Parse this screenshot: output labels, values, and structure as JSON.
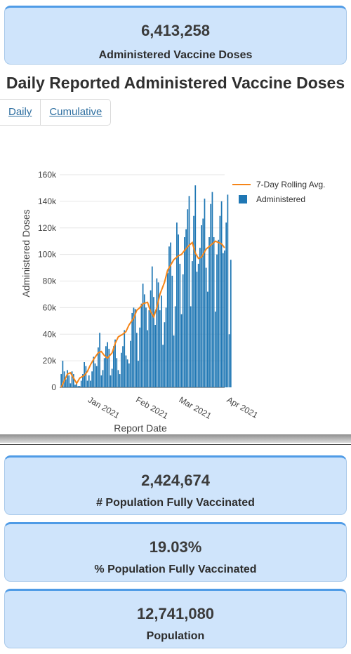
{
  "top_card": {
    "value": "6,413,258",
    "label": "Administered Vaccine Doses"
  },
  "section_title": "Daily Reported Administered Vaccine Doses",
  "tabs": [
    {
      "label": "Daily",
      "active": true
    },
    {
      "label": "Cumulative",
      "active": false
    }
  ],
  "colors": {
    "bar": "#1f77b4",
    "line": "#f58518",
    "card_bg": "#cfe4fb",
    "card_border": "#4f9be6"
  },
  "chart_data": {
    "type": "bar",
    "xlabel": "Report Date",
    "ylabel": "Administered Doses",
    "ylim": [
      0,
      160000
    ],
    "yticks": [
      0,
      20000,
      40000,
      60000,
      80000,
      100000,
      120000,
      140000,
      160000
    ],
    "ytick_labels": [
      "0",
      "20k",
      "40k",
      "60k",
      "80k",
      "100k",
      "120k",
      "140k",
      "160k"
    ],
    "xrange": [
      "2020-12-14",
      "2021-03-31"
    ],
    "xticks": [
      "2021-01-01",
      "2021-02-01",
      "2021-03-01",
      "2021-04-01"
    ],
    "xtick_labels": [
      "Jan 2021",
      "Feb 2021",
      "Mar 2021",
      "Apr 2021"
    ],
    "legend_position": "top-right",
    "grid": true,
    "series": [
      {
        "name": "Administered",
        "kind": "bar",
        "start_date": "2020-12-15",
        "values": [
          10000,
          20000,
          12000,
          6000,
          13000,
          9000,
          3000,
          12000,
          10000,
          2000,
          4000,
          1000,
          1000,
          5000,
          10000,
          19000,
          16000,
          5000,
          9000,
          5000,
          12000,
          23000,
          18000,
          16000,
          30000,
          41000,
          9000,
          13000,
          22000,
          31000,
          34000,
          29000,
          9000,
          14000,
          31000,
          36000,
          22000,
          13000,
          10000,
          26000,
          31000,
          43000,
          24000,
          21000,
          18000,
          35000,
          56000,
          60000,
          59000,
          41000,
          20000,
          45000,
          63000,
          78000,
          70000,
          60000,
          43000,
          58000,
          73000,
          91000,
          68000,
          47000,
          82000,
          79000,
          58000,
          69000,
          32000,
          49000,
          60000,
          86000,
          106000,
          109000,
          84000,
          39000,
          61000,
          124000,
          115000,
          93000,
          55000,
          85000,
          113000,
          119000,
          134000,
          144000,
          61000,
          95000,
          129000,
          152000,
          87000,
          93000,
          105000,
          122000,
          127000,
          142000,
          90000,
          72000,
          113000,
          138000,
          147000,
          113000,
          57000,
          100000,
          111000,
          129000,
          140000,
          101000,
          103000,
          124000,
          145000,
          40000,
          96000
        ]
      },
      {
        "name": "7-Day Rolling Avg.",
        "kind": "line",
        "points": [
          [
            "2020-12-15",
            0
          ],
          [
            "2020-12-17",
            5000
          ],
          [
            "2020-12-19",
            10000
          ],
          [
            "2020-12-21",
            11000
          ],
          [
            "2020-12-23",
            7000
          ],
          [
            "2020-12-25",
            3000
          ],
          [
            "2020-12-27",
            7000
          ],
          [
            "2020-12-30",
            9000
          ],
          [
            "2021-01-01",
            12000
          ],
          [
            "2021-01-03",
            17000
          ],
          [
            "2021-01-05",
            21000
          ],
          [
            "2021-01-08",
            26000
          ],
          [
            "2021-01-10",
            27000
          ],
          [
            "2021-01-12",
            24000
          ],
          [
            "2021-01-14",
            22000
          ],
          [
            "2021-01-17",
            26000
          ],
          [
            "2021-01-19",
            33000
          ],
          [
            "2021-01-21",
            38000
          ],
          [
            "2021-01-24",
            40000
          ],
          [
            "2021-01-26",
            42000
          ],
          [
            "2021-01-28",
            47000
          ],
          [
            "2021-01-31",
            52000
          ],
          [
            "2021-02-02",
            58000
          ],
          [
            "2021-02-04",
            60000
          ],
          [
            "2021-02-06",
            63000
          ],
          [
            "2021-02-09",
            64000
          ],
          [
            "2021-02-11",
            57000
          ],
          [
            "2021-02-13",
            53000
          ],
          [
            "2021-02-15",
            60000
          ],
          [
            "2021-02-17",
            70000
          ],
          [
            "2021-02-20",
            79000
          ],
          [
            "2021-02-22",
            88000
          ],
          [
            "2021-02-24",
            92000
          ],
          [
            "2021-02-26",
            96000
          ],
          [
            "2021-03-01",
            99000
          ],
          [
            "2021-03-03",
            100000
          ],
          [
            "2021-03-05",
            103000
          ],
          [
            "2021-03-08",
            107000
          ],
          [
            "2021-03-10",
            109000
          ],
          [
            "2021-03-12",
            101000
          ],
          [
            "2021-03-14",
            97000
          ],
          [
            "2021-03-16",
            98000
          ],
          [
            "2021-03-19",
            104000
          ],
          [
            "2021-03-21",
            106000
          ],
          [
            "2021-03-23",
            108000
          ],
          [
            "2021-03-25",
            110000
          ],
          [
            "2021-03-27",
            109000
          ],
          [
            "2021-03-29",
            108000
          ],
          [
            "2021-03-31",
            105000
          ]
        ]
      }
    ]
  },
  "cards": [
    {
      "value": "2,424,674",
      "label": "# Population Fully Vaccinated"
    },
    {
      "value": "19.03%",
      "label": "% Population Fully Vaccinated"
    },
    {
      "value": "12,741,080",
      "label": "Population"
    }
  ]
}
